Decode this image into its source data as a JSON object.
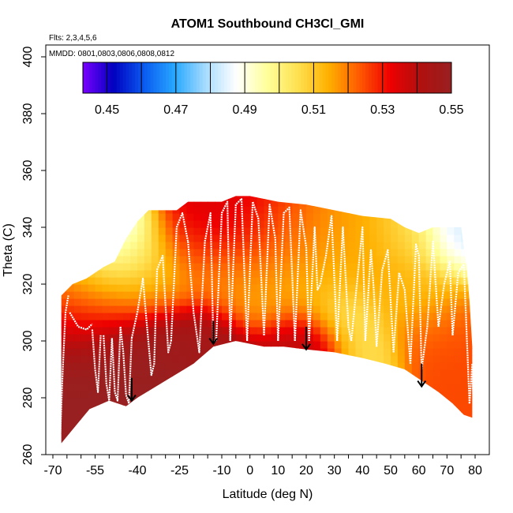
{
  "chart_data": {
    "type": "heatmap",
    "title": "ATOM1 Southbound CH3Cl_GMI",
    "annotations": {
      "flights": "Flts: 2,3,4,5,6",
      "dates": "MMDD: 0801,0803,0806,0808,0812"
    },
    "xlabel": "Latitude (deg N)",
    "ylabel": "Theta (C)",
    "xlim": [
      -70,
      80
    ],
    "ylim": [
      260,
      400
    ],
    "x_ticks_major": [
      -70,
      -55,
      -40,
      -25,
      -10,
      0,
      10,
      20,
      30,
      40,
      50,
      60,
      70,
      80
    ],
    "x_ticks_all": [
      -70,
      -65,
      -60,
      -55,
      -50,
      -45,
      -40,
      -35,
      -30,
      -25,
      -20,
      -15,
      -10,
      -5,
      0,
      5,
      10,
      15,
      20,
      25,
      30,
      35,
      40,
      45,
      50,
      55,
      60,
      65,
      70,
      75,
      80
    ],
    "y_ticks": [
      260,
      280,
      300,
      320,
      340,
      360,
      380,
      400
    ],
    "colorbar": {
      "min": 0.443,
      "max": 0.55,
      "ticks": [
        0.45,
        0.47,
        0.49,
        0.51,
        0.53,
        0.55
      ],
      "boundaries": [
        0.46,
        0.48,
        0.5,
        0.52,
        0.54
      ],
      "colors": [
        "#7a00ff",
        "#0000c0",
        "#0a5cf0",
        "#28a8ff",
        "#a8dcff",
        "#ffffff",
        "#ffff9a",
        "#ffe050",
        "#ffb000",
        "#ff5a00",
        "#ee0000",
        "#b01010",
        "#982020"
      ]
    },
    "surface_boundary": {
      "lat": [
        -67,
        -62,
        -57,
        -50,
        -44,
        -40,
        -35,
        -30,
        -25,
        -20,
        -13,
        -5,
        0,
        5,
        12,
        20,
        30,
        40,
        48,
        55,
        61,
        67,
        72,
        76,
        79
      ],
      "theta": [
        264,
        270,
        276,
        279,
        277,
        280,
        283,
        286,
        289,
        292,
        298,
        300,
        299,
        298,
        298,
        297,
        296,
        294,
        292,
        290,
        286,
        282,
        278,
        274,
        273
      ]
    },
    "top_boundary": {
      "lat": [
        -67,
        -63,
        -58,
        -52,
        -48,
        -44,
        -40,
        -36,
        -33,
        -30,
        -26,
        -22,
        -15,
        -10,
        -5,
        0,
        5,
        10,
        20,
        25,
        30,
        40,
        50,
        55,
        60,
        65,
        70,
        75,
        77,
        78,
        79
      ],
      "theta": [
        316,
        320,
        322,
        326,
        328,
        336,
        342,
        346,
        346,
        346,
        346,
        349,
        349,
        349,
        351,
        351,
        350,
        349,
        348,
        347,
        346,
        344,
        343,
        340,
        338,
        340,
        340,
        340,
        326,
        314,
        298
      ]
    },
    "arrows": [
      {
        "lat": -42,
        "theta_from": 287,
        "theta_to": 279
      },
      {
        "lat": -13,
        "theta_from": 307,
        "theta_to": 299
      },
      {
        "lat": 20,
        "theta_from": 305,
        "theta_to": 297
      },
      {
        "lat": 61,
        "theta_from": 292,
        "theta_to": 284
      }
    ],
    "field_blobs": [
      {
        "lat": -68,
        "theta": 262,
        "value": 0.55,
        "spread": 900
      },
      {
        "lat": -45,
        "theta": 288,
        "value": 0.55,
        "spread": 600
      },
      {
        "lat": -60,
        "theta": 308,
        "value": 0.53,
        "spread": 180
      },
      {
        "lat": -58,
        "theta": 320,
        "value": 0.51,
        "spread": 160
      },
      {
        "lat": -45,
        "theta": 320,
        "value": 0.51,
        "spread": 140
      },
      {
        "lat": -42,
        "theta": 340,
        "value": 0.485,
        "spread": 90
      },
      {
        "lat": -49,
        "theta": 330,
        "value": 0.488,
        "spread": 100
      },
      {
        "lat": -36,
        "theta": 330,
        "value": 0.5,
        "spread": 80
      },
      {
        "lat": -30,
        "theta": 320,
        "value": 0.512,
        "spread": 110
      },
      {
        "lat": -25,
        "theta": 335,
        "value": 0.525,
        "spread": 120
      },
      {
        "lat": -20,
        "theta": 343,
        "value": 0.535,
        "spread": 140
      },
      {
        "lat": -15,
        "theta": 325,
        "value": 0.52,
        "spread": 120
      },
      {
        "lat": -8,
        "theta": 340,
        "value": 0.535,
        "spread": 180
      },
      {
        "lat": -3,
        "theta": 320,
        "value": 0.515,
        "spread": 140
      },
      {
        "lat": 5,
        "theta": 335,
        "value": 0.525,
        "spread": 160
      },
      {
        "lat": 12,
        "theta": 320,
        "value": 0.515,
        "spread": 140
      },
      {
        "lat": 20,
        "theta": 330,
        "value": 0.518,
        "spread": 180
      },
      {
        "lat": 28,
        "theta": 318,
        "value": 0.51,
        "spread": 120
      },
      {
        "lat": 33,
        "theta": 310,
        "value": 0.502,
        "spread": 70
      },
      {
        "lat": 40,
        "theta": 300,
        "value": 0.505,
        "spread": 90
      },
      {
        "lat": 40,
        "theta": 330,
        "value": 0.515,
        "spread": 160
      },
      {
        "lat": 50,
        "theta": 325,
        "value": 0.515,
        "spread": 160
      },
      {
        "lat": 55,
        "theta": 335,
        "value": 0.505,
        "spread": 80
      },
      {
        "lat": 60,
        "theta": 315,
        "value": 0.51,
        "spread": 120
      },
      {
        "lat": 70,
        "theta": 335,
        "value": 0.492,
        "spread": 100
      },
      {
        "lat": 75,
        "theta": 338,
        "value": 0.478,
        "spread": 60
      },
      {
        "lat": 65,
        "theta": 305,
        "value": 0.525,
        "spread": 120
      },
      {
        "lat": 20,
        "theta": 300,
        "value": 0.54,
        "spread": 120
      },
      {
        "lat": -20,
        "theta": 300,
        "value": 0.545,
        "spread": 150
      }
    ],
    "flight_tracks": [
      {
        "lat": [
          -67.5,
          -66.5,
          -65.5,
          -64.5
        ],
        "theta": [
          264,
          290,
          310,
          316
        ]
      },
      {
        "lat": [
          -64,
          -61,
          -58,
          -56
        ],
        "theta": [
          310,
          305,
          304,
          306
        ]
      },
      {
        "lat": [
          -56,
          -55,
          -54,
          -53
        ],
        "theta": [
          304,
          290,
          282,
          302
        ]
      },
      {
        "lat": [
          -52,
          -51,
          -50,
          -49
        ],
        "theta": [
          302,
          285,
          279,
          301
        ]
      },
      {
        "lat": [
          -49,
          -48,
          -47,
          -46
        ],
        "theta": [
          301,
          282,
          279,
          305
        ]
      },
      {
        "lat": [
          -46,
          -45,
          -44,
          -43,
          -42
        ],
        "theta": [
          305,
          296,
          281,
          278,
          301
        ]
      },
      {
        "lat": [
          -42,
          -40,
          -38,
          -37
        ],
        "theta": [
          301,
          310,
          322,
          310
        ]
      },
      {
        "lat": [
          -37,
          -35,
          -34,
          -33
        ],
        "theta": [
          310,
          288,
          292,
          325
        ]
      },
      {
        "lat": [
          -33,
          -31,
          -29,
          -28
        ],
        "theta": [
          325,
          330,
          296,
          300
        ]
      },
      {
        "lat": [
          -28,
          -26,
          -24,
          -22
        ],
        "theta": [
          300,
          340,
          345,
          335
        ]
      },
      {
        "lat": [
          -22,
          -20,
          -18,
          -16
        ],
        "theta": [
          335,
          310,
          296,
          335
        ]
      },
      {
        "lat": [
          -16,
          -14,
          -13,
          -12
        ],
        "theta": [
          335,
          345,
          300,
          300
        ]
      },
      {
        "lat": [
          -12,
          -10,
          -8,
          -7
        ],
        "theta": [
          300,
          345,
          349,
          300
        ]
      },
      {
        "lat": [
          -7,
          -5,
          -3,
          -1
        ],
        "theta": [
          300,
          348,
          350,
          300
        ]
      },
      {
        "lat": [
          -1,
          1,
          3,
          5
        ],
        "theta": [
          300,
          349,
          343,
          302
        ]
      },
      {
        "lat": [
          5,
          7,
          9,
          10
        ],
        "theta": [
          302,
          348,
          336,
          300
        ]
      },
      {
        "lat": [
          10,
          12,
          14,
          16
        ],
        "theta": [
          300,
          345,
          347,
          300
        ]
      },
      {
        "lat": [
          16,
          18,
          20,
          21
        ],
        "theta": [
          300,
          346,
          333,
          300
        ]
      },
      {
        "lat": [
          21,
          23,
          24,
          25
        ],
        "theta": [
          300,
          340,
          318,
          320
        ]
      },
      {
        "lat": [
          25,
          27,
          29,
          31
        ],
        "theta": [
          320,
          330,
          344,
          300
        ]
      },
      {
        "lat": [
          31,
          33,
          35,
          36
        ],
        "theta": [
          300,
          340,
          305,
          300
        ]
      },
      {
        "lat": [
          36,
          38,
          40,
          41
        ],
        "theta": [
          300,
          320,
          340,
          300
        ]
      },
      {
        "lat": [
          41,
          43,
          44,
          45
        ],
        "theta": [
          300,
          332,
          318,
          298
        ]
      },
      {
        "lat": [
          45,
          47,
          49,
          51
        ],
        "theta": [
          298,
          325,
          332,
          296
        ]
      },
      {
        "lat": [
          51,
          53,
          55,
          57
        ],
        "theta": [
          296,
          324,
          318,
          292
        ]
      },
      {
        "lat": [
          57,
          59,
          60,
          61
        ],
        "theta": [
          292,
          334,
          330,
          290
        ]
      },
      {
        "lat": [
          61,
          63,
          65,
          67
        ],
        "theta": [
          290,
          305,
          335,
          305
        ]
      },
      {
        "lat": [
          67,
          69,
          71,
          72
        ],
        "theta": [
          305,
          320,
          328,
          302
        ]
      },
      {
        "lat": [
          72,
          74,
          76,
          78
        ],
        "theta": [
          302,
          324,
          327,
          278
        ]
      },
      {
        "lat": [
          78,
          79,
          79.5
        ],
        "theta": [
          278,
          292,
          275
        ]
      }
    ]
  }
}
